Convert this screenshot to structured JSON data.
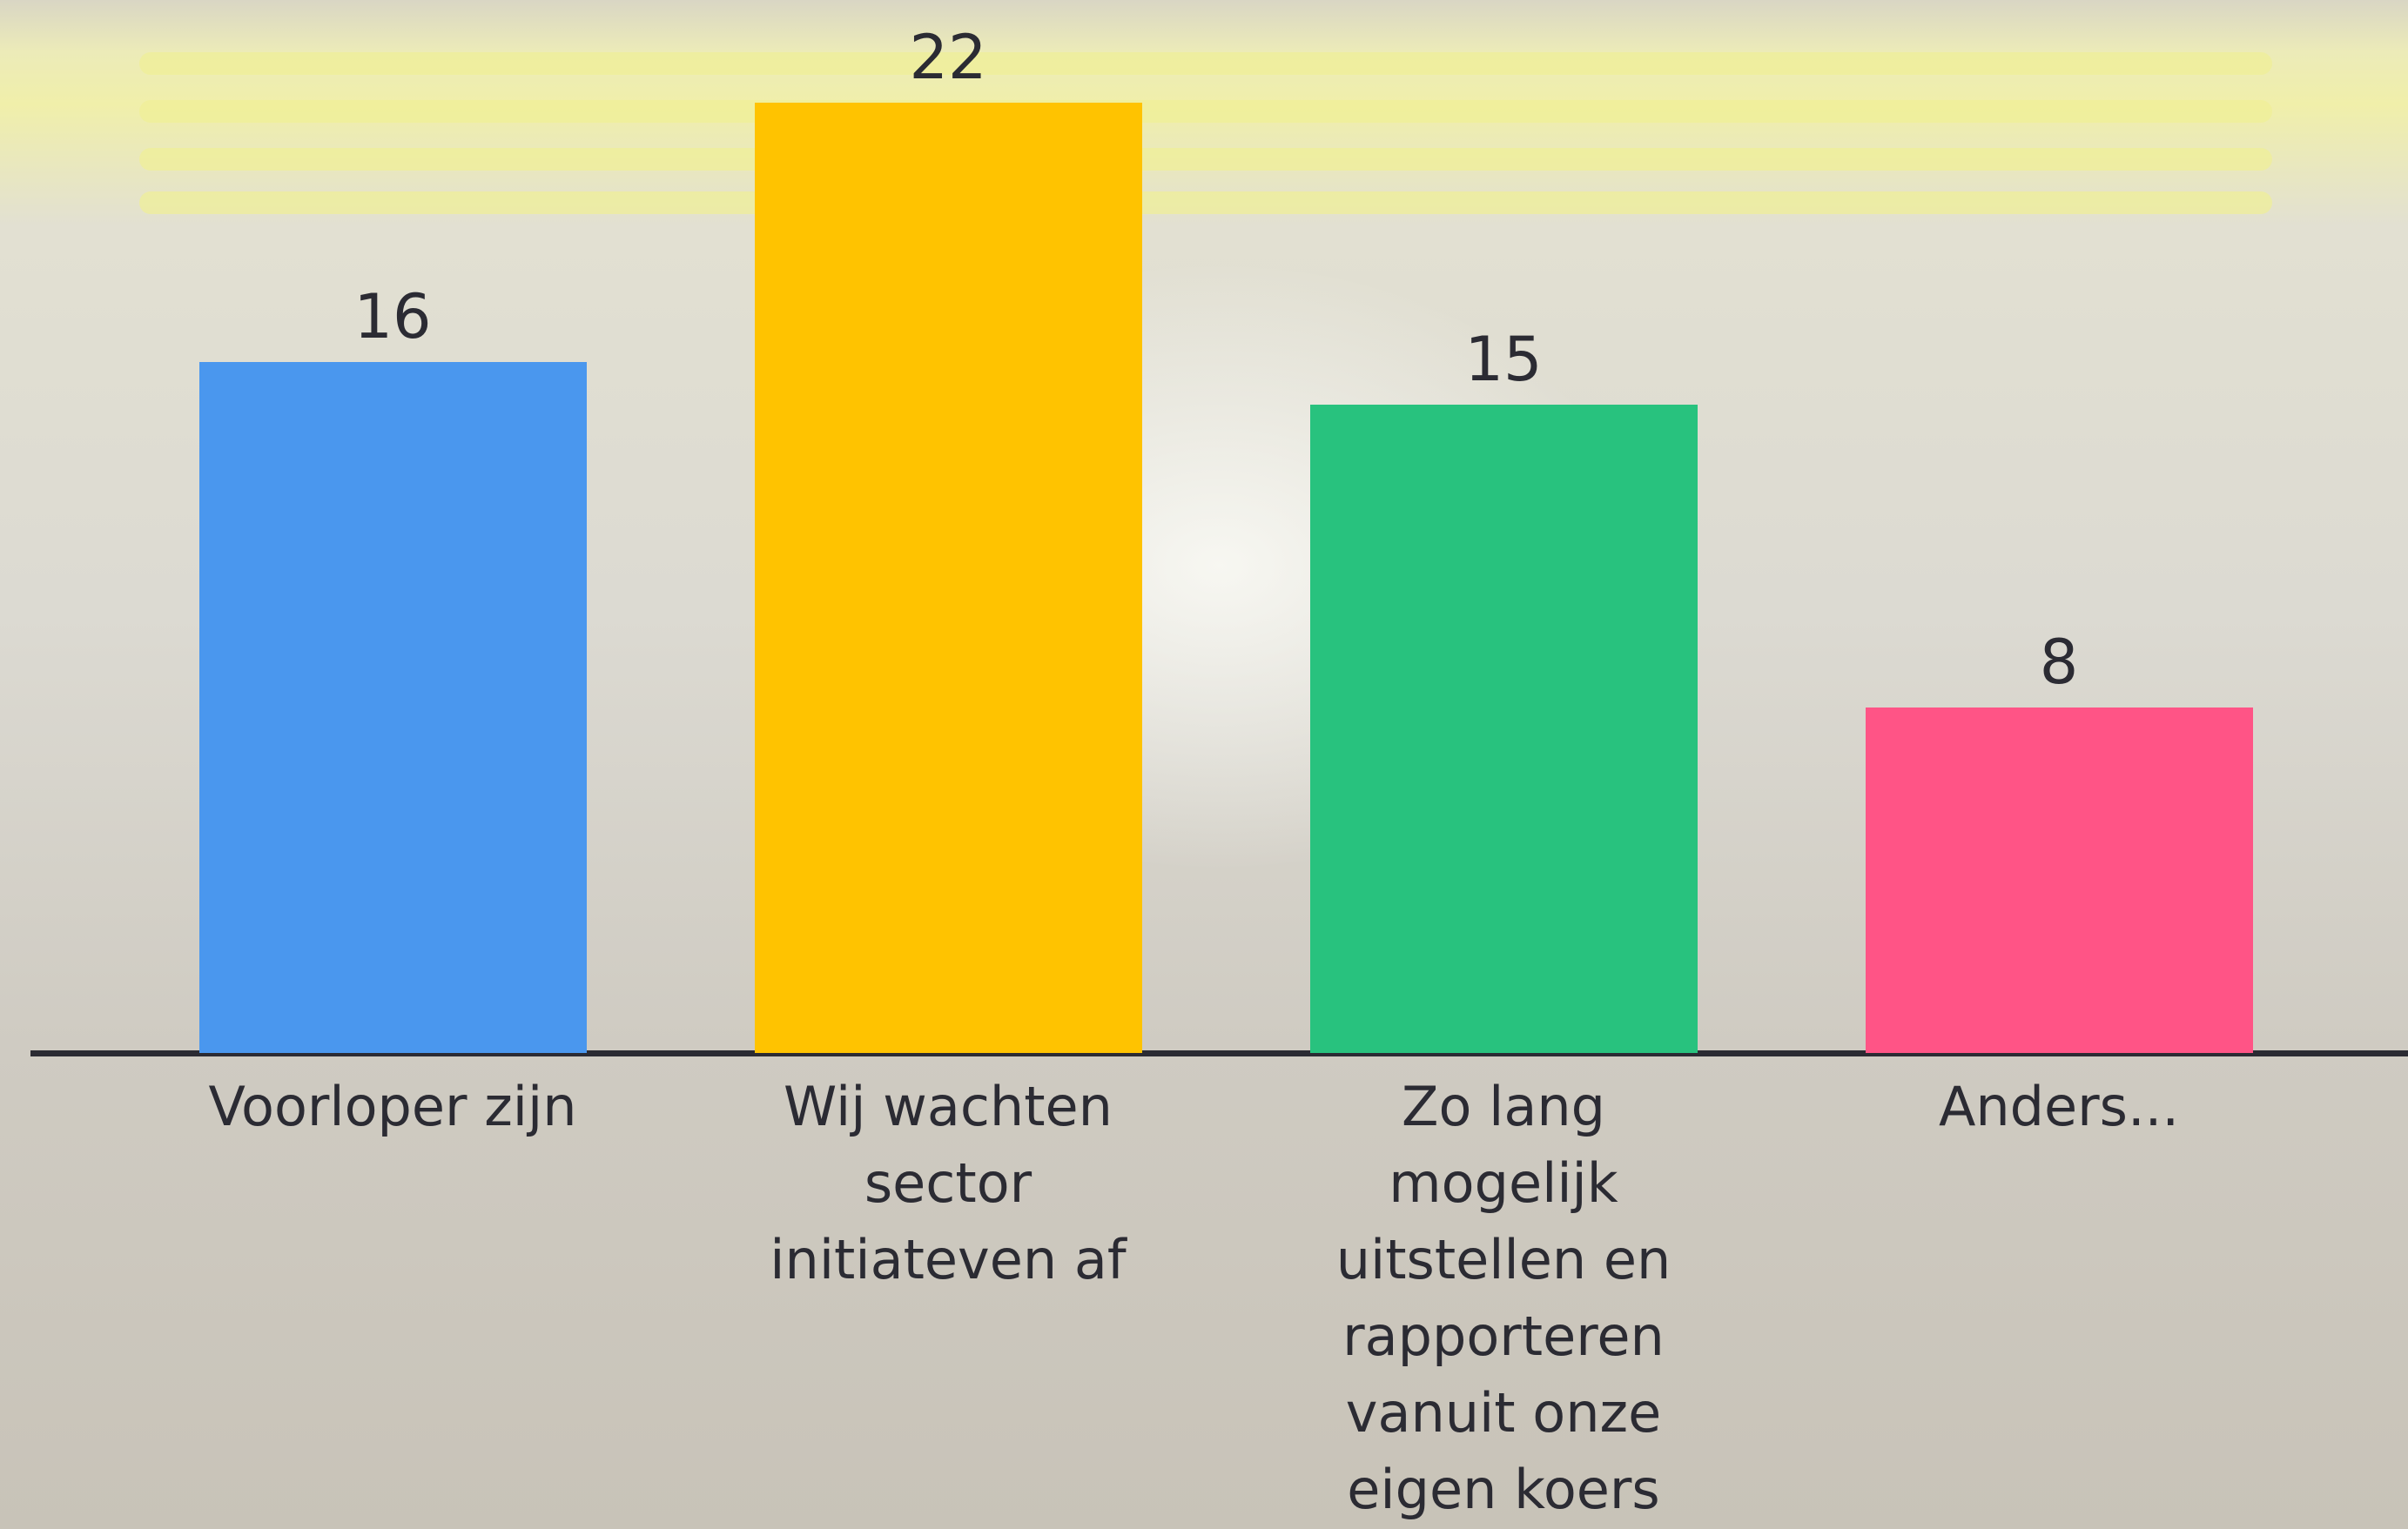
{
  "chart_data": {
    "type": "bar",
    "categories": [
      "Voorloper zijn",
      "Wij wachten sector initiateven af",
      "Zo lang mogelijk uitstellen en rapporteren vanuit onze eigen koers",
      "Anders..."
    ],
    "values": [
      16,
      22,
      15,
      8
    ],
    "colors": [
      "#4a97ee",
      "#ffc300",
      "#28c27e",
      "#ff5486"
    ]
  }
}
